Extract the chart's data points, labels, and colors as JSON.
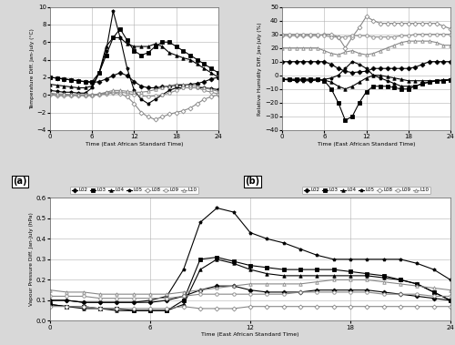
{
  "time": [
    0,
    1,
    2,
    3,
    4,
    5,
    6,
    7,
    8,
    9,
    10,
    11,
    12,
    13,
    14,
    15,
    16,
    17,
    18,
    19,
    20,
    21,
    22,
    23,
    24
  ],
  "temp": {
    "L02": [
      2.0,
      1.9,
      1.8,
      1.7,
      1.6,
      1.5,
      1.4,
      1.5,
      1.8,
      2.2,
      2.5,
      2.2,
      1.5,
      1.0,
      0.8,
      0.8,
      0.9,
      1.0,
      1.1,
      1.1,
      1.2,
      1.3,
      1.5,
      1.8,
      2.0
    ],
    "L03": [
      2.0,
      1.9,
      1.8,
      1.7,
      1.6,
      1.5,
      1.5,
      2.5,
      4.5,
      6.5,
      7.5,
      6.2,
      5.0,
      4.5,
      4.8,
      5.5,
      6.0,
      6.0,
      5.5,
      5.0,
      4.5,
      4.0,
      3.5,
      3.0,
      2.5
    ],
    "L04": [
      1.2,
      1.1,
      1.0,
      0.9,
      0.8,
      0.8,
      1.0,
      2.5,
      5.5,
      6.5,
      6.5,
      5.8,
      5.5,
      5.5,
      5.5,
      5.8,
      5.5,
      4.8,
      4.5,
      4.2,
      4.0,
      3.5,
      3.0,
      2.5,
      2.0
    ],
    "L05": [
      0.5,
      0.4,
      0.3,
      0.3,
      0.2,
      0.2,
      0.8,
      2.5,
      5.0,
      9.5,
      6.5,
      3.0,
      0.5,
      -0.5,
      -1.0,
      -0.5,
      0.0,
      0.5,
      0.8,
      0.8,
      0.8,
      0.8,
      0.8,
      0.7,
      0.6
    ],
    "L08": [
      0.0,
      -0.1,
      -0.1,
      -0.1,
      -0.1,
      -0.1,
      -0.1,
      0.0,
      0.1,
      0.2,
      0.1,
      -0.2,
      -1.0,
      -2.0,
      -2.5,
      -2.8,
      -2.5,
      -2.2,
      -2.0,
      -1.8,
      -1.5,
      -1.0,
      -0.5,
      -0.2,
      0.0
    ],
    "L09": [
      0.1,
      0.0,
      0.0,
      0.0,
      0.0,
      0.0,
      0.0,
      0.1,
      0.2,
      0.3,
      0.3,
      0.2,
      0.0,
      -0.1,
      -0.2,
      -0.1,
      0.0,
      0.2,
      0.5,
      0.8,
      0.8,
      0.8,
      0.5,
      0.3,
      0.1
    ],
    "L10": [
      0.2,
      0.1,
      0.1,
      0.0,
      0.0,
      0.0,
      0.0,
      0.1,
      0.3,
      0.5,
      0.5,
      0.4,
      0.3,
      0.3,
      0.4,
      0.6,
      0.8,
      1.0,
      1.2,
      1.2,
      1.1,
      1.0,
      0.8,
      0.6,
      0.4
    ]
  },
  "rh": {
    "L02": [
      10.0,
      10.0,
      10.0,
      10.0,
      10.0,
      10.0,
      10.0,
      8.0,
      5.0,
      3.0,
      2.0,
      2.5,
      3.0,
      5.0,
      5.0,
      5.0,
      5.0,
      5.0,
      5.0,
      6.0,
      8.0,
      10.0,
      10.0,
      10.0,
      10.0
    ],
    "L03": [
      -3.0,
      -3.0,
      -3.0,
      -3.0,
      -3.0,
      -3.0,
      -4.0,
      -10.0,
      -20.0,
      -33.0,
      -30.0,
      -20.0,
      -12.0,
      -8.0,
      -8.0,
      -8.0,
      -9.0,
      -10.0,
      -10.0,
      -8.0,
      -6.0,
      -5.0,
      -4.0,
      -4.0,
      -3.5
    ],
    "L04": [
      -3.0,
      -3.0,
      -3.0,
      -3.0,
      -3.0,
      -3.0,
      -3.5,
      -5.0,
      -8.0,
      -10.0,
      -8.0,
      -5.0,
      -2.0,
      0.0,
      0.0,
      -1.0,
      -2.0,
      -3.0,
      -4.0,
      -4.0,
      -4.0,
      -4.0,
      -4.0,
      -3.5,
      -3.0
    ],
    "L05": [
      -3.0,
      -3.5,
      -4.0,
      -4.0,
      -4.0,
      -3.5,
      -3.0,
      -2.0,
      0.0,
      5.0,
      10.0,
      8.0,
      5.0,
      0.0,
      -2.0,
      -4.0,
      -6.0,
      -8.0,
      -8.0,
      -8.0,
      -6.0,
      -5.0,
      -4.0,
      -3.5,
      -3.0
    ],
    "L08": [
      29.0,
      29.0,
      29.0,
      29.0,
      29.0,
      29.0,
      30.0,
      30.0,
      28.0,
      20.0,
      28.0,
      35.0,
      43.0,
      40.0,
      38.0,
      38.0,
      38.0,
      38.0,
      38.0,
      38.0,
      38.0,
      38.0,
      38.0,
      36.0,
      34.0
    ],
    "L09": [
      30.0,
      30.0,
      30.0,
      30.0,
      30.0,
      30.0,
      29.0,
      28.0,
      28.0,
      28.0,
      29.0,
      29.0,
      29.0,
      28.0,
      28.0,
      28.0,
      28.0,
      29.0,
      29.0,
      30.0,
      30.0,
      30.0,
      30.0,
      30.0,
      30.0
    ],
    "L10": [
      20.0,
      20.0,
      20.0,
      20.0,
      20.0,
      20.0,
      18.0,
      16.0,
      15.0,
      17.0,
      18.0,
      16.0,
      15.0,
      16.0,
      18.0,
      20.0,
      22.0,
      24.0,
      25.0,
      25.0,
      25.0,
      25.0,
      24.0,
      22.0,
      22.0
    ]
  },
  "vp": {
    "L02": [
      0.1,
      0.1,
      0.09,
      0.09,
      0.09,
      0.09,
      0.09,
      0.1,
      0.12,
      0.15,
      0.17,
      0.17,
      0.15,
      0.14,
      0.14,
      0.14,
      0.15,
      0.15,
      0.15,
      0.15,
      0.14,
      0.13,
      0.12,
      0.11,
      0.1
    ],
    "L03": [
      0.08,
      0.07,
      0.07,
      0.06,
      0.06,
      0.05,
      0.05,
      0.05,
      0.1,
      0.3,
      0.31,
      0.29,
      0.27,
      0.26,
      0.25,
      0.25,
      0.25,
      0.25,
      0.24,
      0.23,
      0.22,
      0.2,
      0.18,
      0.14,
      0.1
    ],
    "L04": [
      0.08,
      0.07,
      0.06,
      0.06,
      0.05,
      0.05,
      0.05,
      0.05,
      0.08,
      0.25,
      0.3,
      0.28,
      0.25,
      0.23,
      0.22,
      0.22,
      0.22,
      0.22,
      0.22,
      0.22,
      0.21,
      0.2,
      0.18,
      0.14,
      0.1
    ],
    "L05": [
      0.1,
      0.1,
      0.09,
      0.09,
      0.09,
      0.09,
      0.1,
      0.12,
      0.25,
      0.48,
      0.55,
      0.53,
      0.43,
      0.4,
      0.38,
      0.35,
      0.32,
      0.3,
      0.3,
      0.3,
      0.3,
      0.3,
      0.28,
      0.25,
      0.2
    ],
    "L08": [
      0.07,
      0.07,
      0.07,
      0.06,
      0.06,
      0.06,
      0.06,
      0.06,
      0.07,
      0.06,
      0.06,
      0.06,
      0.07,
      0.07,
      0.07,
      0.07,
      0.07,
      0.07,
      0.07,
      0.07,
      0.07,
      0.07,
      0.07,
      0.07,
      0.07
    ],
    "L09": [
      0.12,
      0.12,
      0.12,
      0.11,
      0.11,
      0.11,
      0.11,
      0.11,
      0.12,
      0.13,
      0.13,
      0.13,
      0.13,
      0.13,
      0.13,
      0.14,
      0.14,
      0.14,
      0.14,
      0.14,
      0.13,
      0.13,
      0.13,
      0.12,
      0.12
    ],
    "L10": [
      0.15,
      0.14,
      0.14,
      0.13,
      0.13,
      0.13,
      0.13,
      0.13,
      0.14,
      0.15,
      0.16,
      0.17,
      0.18,
      0.18,
      0.18,
      0.18,
      0.19,
      0.2,
      0.2,
      0.2,
      0.19,
      0.18,
      0.17,
      0.16,
      0.15
    ]
  },
  "series": [
    "L02",
    "L03",
    "L04",
    "L05",
    "L08",
    "L09",
    "L10"
  ],
  "markers": [
    "D",
    "s",
    "^",
    "p",
    "D",
    "o",
    "^"
  ],
  "colors": [
    "#000000",
    "#000000",
    "#000000",
    "#000000",
    "#888888",
    "#888888",
    "#888888"
  ],
  "fillstyles": [
    "full",
    "full",
    "full",
    "full",
    "none",
    "none",
    "none"
  ],
  "markersize": 2.5,
  "linewidth": 0.8,
  "temp_ylim": [
    -4,
    10
  ],
  "temp_yticks": [
    -4,
    -2,
    0,
    2,
    4,
    6,
    8,
    10
  ],
  "rh_ylim": [
    -40,
    50
  ],
  "rh_yticks": [
    -40,
    -30,
    -20,
    -10,
    0,
    10,
    20,
    30,
    40,
    50
  ],
  "vp_ylim": [
    0.0,
    0.6
  ],
  "vp_yticks": [
    0.0,
    0.1,
    0.2,
    0.3,
    0.4,
    0.5,
    0.6
  ],
  "xlabel": "Time (East African Standard Time)",
  "temp_ylabel": "Temperature Diff. Jan-July (°C)",
  "rh_ylabel": "Relative Humidity Diff. Jan-July (%)",
  "vp_ylabel": "Vapour Pressure Diff. Jan-July (hPa)",
  "xticks": [
    0,
    6,
    12,
    18,
    24
  ],
  "xlim": [
    0,
    24
  ],
  "bg_color": "#d8d8d8",
  "plot_bg": "#ffffff",
  "grid_color": "#b0b0b0"
}
